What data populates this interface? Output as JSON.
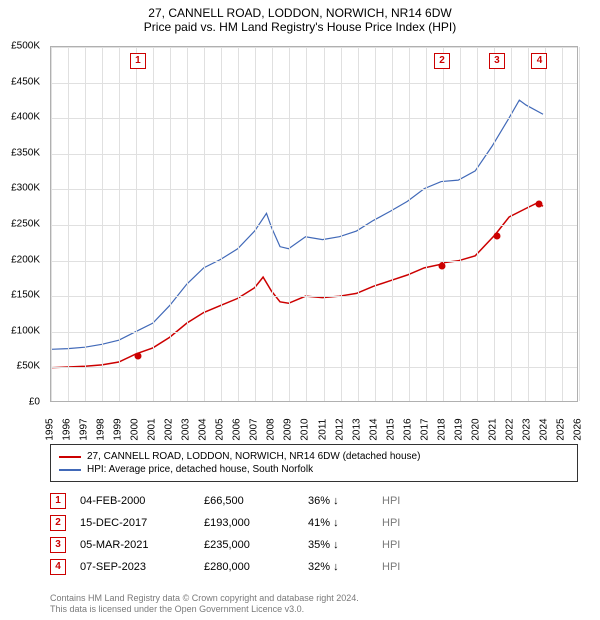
{
  "title": {
    "line1": "27, CANNELL ROAD, LODDON, NORWICH, NR14 6DW",
    "line2": "Price paid vs. HM Land Registry's House Price Index (HPI)"
  },
  "chart": {
    "type": "line",
    "background_color": "#ffffff",
    "grid_color": "#e0e0e0",
    "axis_color": "#b0b0b0",
    "xlim": [
      1995,
      2026
    ],
    "ylim": [
      0,
      500000
    ],
    "ytick_step": 50000,
    "ytick_labels": [
      "£0",
      "£50K",
      "£100K",
      "£150K",
      "£200K",
      "£250K",
      "£300K",
      "£350K",
      "£400K",
      "£450K",
      "£500K"
    ],
    "xticks": [
      1995,
      1996,
      1997,
      1998,
      1999,
      2000,
      2001,
      2002,
      2003,
      2004,
      2005,
      2006,
      2007,
      2008,
      2009,
      2010,
      2011,
      2012,
      2013,
      2014,
      2015,
      2016,
      2017,
      2018,
      2019,
      2020,
      2021,
      2022,
      2023,
      2024,
      2025,
      2026
    ],
    "label_fontsize": 10,
    "series": [
      {
        "name": "price_paid",
        "label": "27, CANNELL ROAD, LODDON, NORWICH, NR14 6DW (detached house)",
        "color": "#cc0000",
        "line_width": 1.5,
        "points": [
          [
            1995,
            47000
          ],
          [
            1996,
            48000
          ],
          [
            1997,
            49000
          ],
          [
            1998,
            51000
          ],
          [
            1999,
            55000
          ],
          [
            2000,
            66500
          ],
          [
            2001,
            75000
          ],
          [
            2002,
            90000
          ],
          [
            2003,
            110000
          ],
          [
            2004,
            125000
          ],
          [
            2005,
            135000
          ],
          [
            2006,
            145000
          ],
          [
            2007,
            160000
          ],
          [
            2007.5,
            175000
          ],
          [
            2008,
            155000
          ],
          [
            2008.5,
            140000
          ],
          [
            2009,
            138000
          ],
          [
            2010,
            148000
          ],
          [
            2011,
            146000
          ],
          [
            2012,
            148000
          ],
          [
            2013,
            152000
          ],
          [
            2014,
            162000
          ],
          [
            2015,
            170000
          ],
          [
            2016,
            178000
          ],
          [
            2017,
            188000
          ],
          [
            2017.96,
            193000
          ],
          [
            2018,
            195000
          ],
          [
            2019,
            198000
          ],
          [
            2020,
            205000
          ],
          [
            2021.18,
            235000
          ],
          [
            2022,
            260000
          ],
          [
            2023,
            272000
          ],
          [
            2023.68,
            280000
          ],
          [
            2024,
            275000
          ]
        ]
      },
      {
        "name": "hpi",
        "label": "HPI: Average price, detached house, South Norfolk",
        "color": "#4169b8",
        "line_width": 1.2,
        "points": [
          [
            1995,
            73000
          ],
          [
            1996,
            74000
          ],
          [
            1997,
            76000
          ],
          [
            1998,
            80000
          ],
          [
            1999,
            86000
          ],
          [
            2000,
            98000
          ],
          [
            2001,
            110000
          ],
          [
            2002,
            135000
          ],
          [
            2003,
            165000
          ],
          [
            2004,
            188000
          ],
          [
            2005,
            200000
          ],
          [
            2006,
            215000
          ],
          [
            2007,
            240000
          ],
          [
            2007.7,
            265000
          ],
          [
            2008,
            245000
          ],
          [
            2008.5,
            218000
          ],
          [
            2009,
            215000
          ],
          [
            2010,
            232000
          ],
          [
            2011,
            228000
          ],
          [
            2012,
            232000
          ],
          [
            2013,
            240000
          ],
          [
            2014,
            255000
          ],
          [
            2015,
            268000
          ],
          [
            2016,
            282000
          ],
          [
            2017,
            300000
          ],
          [
            2018,
            310000
          ],
          [
            2019,
            312000
          ],
          [
            2020,
            325000
          ],
          [
            2021,
            360000
          ],
          [
            2022,
            400000
          ],
          [
            2022.6,
            425000
          ],
          [
            2023,
            418000
          ],
          [
            2024,
            405000
          ]
        ]
      }
    ],
    "sale_markers": [
      {
        "num": "1",
        "x": 2000.1,
        "y": 66500
      },
      {
        "num": "2",
        "x": 2017.96,
        "y": 193000
      },
      {
        "num": "3",
        "x": 2021.18,
        "y": 235000
      },
      {
        "num": "4",
        "x": 2023.68,
        "y": 280000
      }
    ],
    "marker_border_color": "#cc0000",
    "marker_label_top_offset": 6
  },
  "legend": {
    "items": [
      {
        "color": "#cc0000",
        "label": "27, CANNELL ROAD, LODDON, NORWICH, NR14 6DW (detached house)"
      },
      {
        "color": "#4169b8",
        "label": "HPI: Average price, detached house, South Norfolk"
      }
    ]
  },
  "sales_table": {
    "rows": [
      {
        "num": "1",
        "date": "04-FEB-2000",
        "price": "£66,500",
        "pct": "36%",
        "arrow": "↓",
        "hpi": "HPI"
      },
      {
        "num": "2",
        "date": "15-DEC-2017",
        "price": "£193,000",
        "pct": "41%",
        "arrow": "↓",
        "hpi": "HPI"
      },
      {
        "num": "3",
        "date": "05-MAR-2021",
        "price": "£235,000",
        "pct": "35%",
        "arrow": "↓",
        "hpi": "HPI"
      },
      {
        "num": "4",
        "date": "07-SEP-2023",
        "price": "£280,000",
        "pct": "32%",
        "arrow": "↓",
        "hpi": "HPI"
      }
    ]
  },
  "footer": {
    "line1": "Contains HM Land Registry data © Crown copyright and database right 2024.",
    "line2": "This data is licensed under the Open Government Licence v3.0."
  }
}
